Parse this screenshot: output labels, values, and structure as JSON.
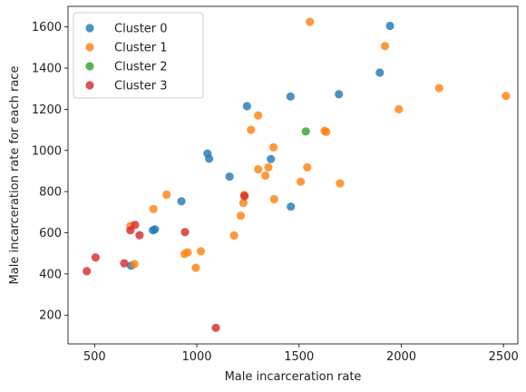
{
  "chart_data": {
    "type": "scatter",
    "xlabel": "Male incarceration rate",
    "ylabel": "Male incarceration rate for each race",
    "xlim": [
      370,
      2570
    ],
    "ylim": [
      60,
      1700
    ],
    "xticks": [
      500,
      1000,
      1500,
      2000,
      2500
    ],
    "yticks": [
      200,
      400,
      600,
      800,
      1000,
      1200,
      1400,
      1600
    ],
    "grid": false,
    "legend_position": "top-left",
    "series": [
      {
        "name": "Cluster 0",
        "color": "#1f77b4",
        "points": [
          [
            1945,
            1605
          ],
          [
            1895,
            1378
          ],
          [
            1695,
            1273
          ],
          [
            1458,
            1262
          ],
          [
            1245,
            1215
          ],
          [
            1052,
            985
          ],
          [
            1060,
            960
          ],
          [
            1362,
            958
          ],
          [
            1160,
            873
          ],
          [
            925,
            753
          ],
          [
            785,
            612
          ],
          [
            795,
            617
          ],
          [
            678,
            440
          ],
          [
            1460,
            727
          ]
        ]
      },
      {
        "name": "Cluster 1",
        "color": "#ff7f0e",
        "points": [
          [
            1553,
            1625
          ],
          [
            1920,
            1507
          ],
          [
            2185,
            1303
          ],
          [
            2512,
            1265
          ],
          [
            1988,
            1200
          ],
          [
            1300,
            1170
          ],
          [
            1265,
            1100
          ],
          [
            1625,
            1095
          ],
          [
            1633,
            1090
          ],
          [
            1375,
            1015
          ],
          [
            1350,
            918
          ],
          [
            1540,
            918
          ],
          [
            1300,
            908
          ],
          [
            1335,
            878
          ],
          [
            1508,
            848
          ],
          [
            1700,
            840
          ],
          [
            1232,
            784
          ],
          [
            1378,
            763
          ],
          [
            1228,
            745
          ],
          [
            852,
            785
          ],
          [
            788,
            715
          ],
          [
            1215,
            683
          ],
          [
            675,
            633
          ],
          [
            1182,
            587
          ],
          [
            1020,
            510
          ],
          [
            955,
            505
          ],
          [
            940,
            497
          ],
          [
            695,
            448
          ],
          [
            995,
            430
          ]
        ]
      },
      {
        "name": "Cluster 2",
        "color": "#2ca02c",
        "points": [
          [
            1533,
            1092
          ]
        ]
      },
      {
        "name": "Cluster 3",
        "color": "#d62728",
        "points": [
          [
            698,
            638
          ],
          [
            675,
            612
          ],
          [
            720,
            588
          ],
          [
            942,
            603
          ],
          [
            1233,
            778
          ],
          [
            505,
            480
          ],
          [
            645,
            452
          ],
          [
            462,
            413
          ],
          [
            1093,
            138
          ]
        ]
      }
    ]
  }
}
